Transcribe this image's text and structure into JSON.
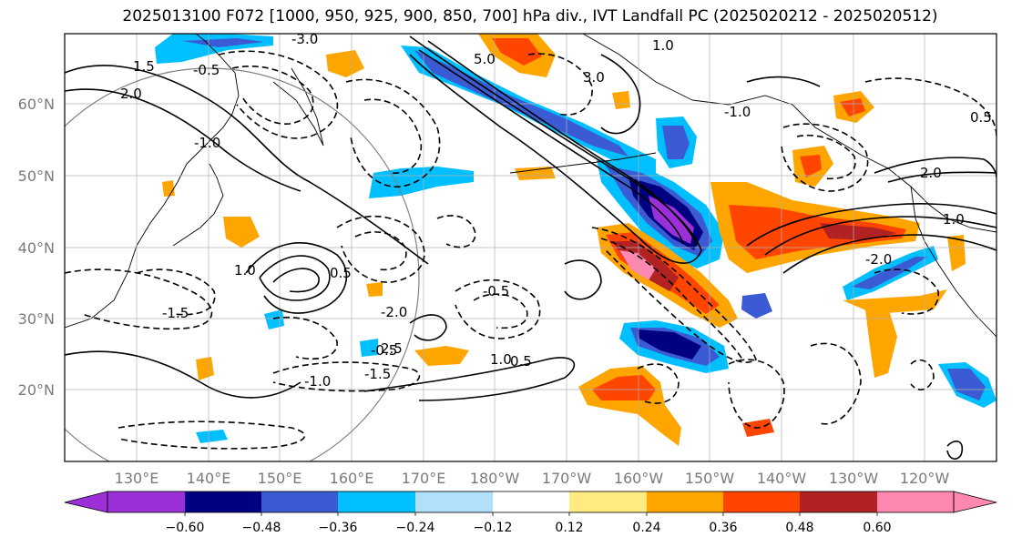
{
  "title": "2025013100 F072 [1000, 950, 925, 900, 850, 700] hPa div., IVT Landfall PC (2025020212 - 2025020512)",
  "map": {
    "projection": "plate-carree",
    "lon_range": [
      120,
      250
    ],
    "lat_range": [
      10,
      70
    ],
    "lat_ticks": [
      "20°N",
      "30°N",
      "40°N",
      "50°N",
      "60°N"
    ],
    "lon_ticks": [
      "130°E",
      "140°E",
      "150°E",
      "160°E",
      "170°E",
      "180°W",
      "170°W",
      "160°W",
      "150°W",
      "140°W",
      "130°W",
      "120°W"
    ],
    "gridlines": true,
    "contour_labels": [
      "-3.0",
      "-0.5",
      "1.5",
      "2.0",
      "-1.0",
      "-1.5",
      "1.0",
      "0.5",
      "-2.0",
      "2.5",
      "5.0",
      "3.0",
      "1.0",
      "-1.0",
      "0.5",
      "2.0",
      "-2.0",
      "-0.5",
      "-0.5",
      "1.0",
      "-1.5",
      "1.0",
      "0.5",
      "-1.0"
    ]
  },
  "colorbar": {
    "ticks": [
      "−0.60",
      "−0.48",
      "−0.36",
      "−0.24",
      "−0.12",
      "0.12",
      "0.24",
      "0.36",
      "0.48",
      "0.60"
    ],
    "colors": [
      "#9b30d9",
      "#000080",
      "#3a5bd4",
      "#00bfff",
      "#b0e0fa",
      "#ffffff",
      "#ffeb80",
      "#ffa500",
      "#ff4500",
      "#b22222",
      "#ff88b0"
    ]
  },
  "fill_colors": {
    "neg_high": "#9b30d9",
    "neg_dark": "#000080",
    "neg_mid": "#3a5bd4",
    "neg_light": "#00bfff",
    "pos_light": "#ffeb80",
    "pos_mid": "#ffa500",
    "pos_high": "#ff4500",
    "pos_top": "#b22222",
    "pos_max": "#ff88b0"
  }
}
